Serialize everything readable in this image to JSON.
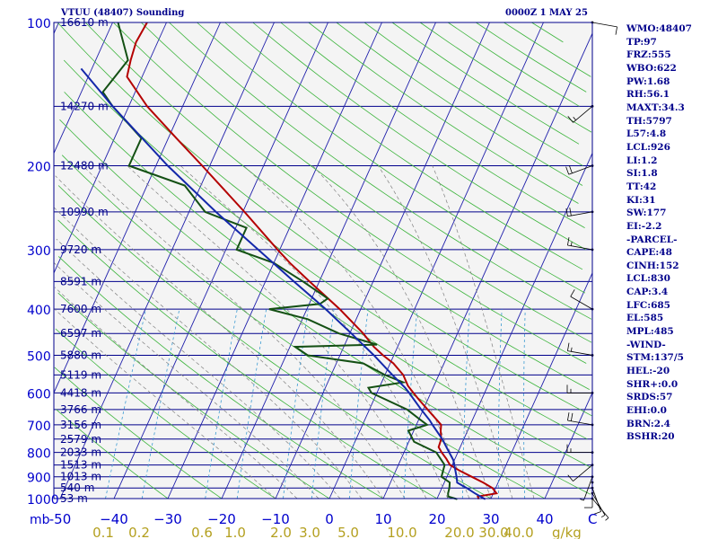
{
  "header": {
    "station": "VTUU (48407) Sounding",
    "time": "0000Z  1 MAY 25"
  },
  "colors": {
    "frame": "#00008b",
    "isobar": "#00008b",
    "isotherm": "#1e1eaa",
    "dry_adiabat": "#3cb43c",
    "moist_adiabat": "#808080",
    "mixing_ratio": "#3c9bd2",
    "temperature": "#b40000",
    "dewpoint": "#145014",
    "parcel": "#1428aa",
    "axis_label": "#0000cd",
    "mixing_label": "#b4a020",
    "plot_bg": "#f4f4f4",
    "wind": "#000000"
  },
  "indices": [
    "WMO:48407",
    "TP:97",
    "FRZ:555",
    "WBO:622",
    "PW:1.68",
    "RH:56.1",
    "MAXT:34.3",
    "TH:5797",
    "L57:4.8",
    "LCL:926",
    "LI:1.2",
    "SI:1.8",
    "TT:42",
    "KI:31",
    "SW:177",
    "EI:-2.2",
    "-PARCEL-",
    "CAPE:48",
    "CINH:152",
    "LCL:830",
    "CAP:3.4",
    "LFC:685",
    "EL:585",
    "MPL:485",
    "-WIND-",
    "STM:137/5",
    "HEL:-20",
    "SHR+:0.0",
    "SRDS:57",
    "EHI:0.0",
    "BRN:2.4",
    "BSHR:20"
  ],
  "chart_data": {
    "type": "line",
    "title": "VTUU (48407) Sounding",
    "subtitle": "0000Z  1 MAY 25",
    "x_unit_label": "mb",
    "mixing_unit": "g/kg",
    "xlim": [
      -50,
      50
    ],
    "ylim": [
      1000,
      100
    ],
    "y_scale": "log",
    "temperature_ticks": [
      -50,
      -40,
      -30,
      -20,
      -10,
      0,
      10,
      20,
      30,
      40
    ],
    "temperature_tick_labels": [
      "-50",
      "−40",
      "−30",
      "−20",
      "−10",
      "0",
      "10",
      "20",
      "30",
      "40"
    ],
    "c_label": "C",
    "pressure_ticks": [
      100,
      200,
      300,
      400,
      500,
      600,
      700,
      800,
      900,
      1000
    ],
    "pressure_tick_labels": [
      "100",
      "200",
      "300",
      "400",
      "500",
      "600",
      "700",
      "800",
      "900",
      "1000"
    ],
    "height_levels": [
      {
        "p": 100,
        "label": "16610 m"
      },
      {
        "p": 150,
        "label": "14270 m"
      },
      {
        "p": 200,
        "label": "12480 m"
      },
      {
        "p": 250,
        "label": "10990 m"
      },
      {
        "p": 300,
        "label": "9720 m"
      },
      {
        "p": 350,
        "label": "8591 m"
      },
      {
        "p": 400,
        "label": "7600 m"
      },
      {
        "p": 450,
        "label": "6597 m"
      },
      {
        "p": 500,
        "label": "5880 m"
      },
      {
        "p": 550,
        "label": "5119 m"
      },
      {
        "p": 600,
        "label": "4418 m"
      },
      {
        "p": 650,
        "label": "3766 m"
      },
      {
        "p": 700,
        "label": "3156 m"
      },
      {
        "p": 750,
        "label": "2579 m"
      },
      {
        "p": 800,
        "label": "2033 m"
      },
      {
        "p": 850,
        "label": "1513 m"
      },
      {
        "p": 900,
        "label": "1013 m"
      },
      {
        "p": 950,
        "label": "540 m"
      },
      {
        "p": 1000,
        "label": "53 m"
      }
    ],
    "mixing_ratios": [
      {
        "w": 0.1,
        "label": "0.1"
      },
      {
        "w": 0.2,
        "label": "0.2"
      },
      {
        "w": 0.6,
        "label": "0.6"
      },
      {
        "w": 1.0,
        "label": "1.0"
      },
      {
        "w": 2.0,
        "label": "2.0"
      },
      {
        "w": 3.0,
        "label": "3.0"
      },
      {
        "w": 5.0,
        "label": "5.0"
      },
      {
        "w": 10.0,
        "label": "10.0"
      },
      {
        "w": 20.0,
        "label": "20.0"
      },
      {
        "w": 30.0,
        "label": "30.0"
      },
      {
        "w": 40.0,
        "label": "40.0"
      }
    ],
    "series": [
      {
        "key": "temperature",
        "points": [
          [
            1003,
            27.8
          ],
          [
            990,
            27.4
          ],
          [
            975,
            30.6
          ],
          [
            950,
            29.4
          ],
          [
            925,
            27.2
          ],
          [
            900,
            24.6
          ],
          [
            875,
            22.0
          ],
          [
            850,
            19.6
          ],
          [
            825,
            18.4
          ],
          [
            800,
            17.0
          ],
          [
            780,
            16.0
          ],
          [
            750,
            15.8
          ],
          [
            720,
            15.0
          ],
          [
            700,
            14.6
          ],
          [
            650,
            10.8
          ],
          [
            620,
            8.4
          ],
          [
            600,
            6.8
          ],
          [
            580,
            5.2
          ],
          [
            550,
            3.4
          ],
          [
            520,
            0.6
          ],
          [
            500,
            -2.0
          ],
          [
            480,
            -4.4
          ],
          [
            450,
            -7.5
          ],
          [
            400,
            -13.9
          ],
          [
            350,
            -21.8
          ],
          [
            320,
            -27.0
          ],
          [
            300,
            -30.4
          ],
          [
            250,
            -39.7
          ],
          [
            200,
            -51.4
          ],
          [
            175,
            -58.5
          ],
          [
            150,
            -66.6
          ],
          [
            130,
            -72.8
          ],
          [
            120,
            -73.5
          ],
          [
            110,
            -74.0
          ],
          [
            100,
            -73.6
          ]
        ]
      },
      {
        "key": "dewpoint",
        "points": [
          [
            1003,
            23.8
          ],
          [
            990,
            21.9
          ],
          [
            975,
            21.6
          ],
          [
            950,
            21.4
          ],
          [
            925,
            21.0
          ],
          [
            900,
            19.0
          ],
          [
            850,
            18.6
          ],
          [
            800,
            16.0
          ],
          [
            760,
            11.0
          ],
          [
            720,
            9.0
          ],
          [
            700,
            12.0
          ],
          [
            680,
            10.0
          ],
          [
            650,
            7.0
          ],
          [
            600,
            -1.0
          ],
          [
            585,
            -2.0
          ],
          [
            570,
            4.0
          ],
          [
            550,
            0.0
          ],
          [
            520,
            -5.0
          ],
          [
            500,
            -16.0
          ],
          [
            480,
            -19.0
          ],
          [
            475,
            -4.0
          ],
          [
            450,
            -12.0
          ],
          [
            420,
            -19.0
          ],
          [
            400,
            -27.0
          ],
          [
            390,
            -18.0
          ],
          [
            380,
            -17.0
          ],
          [
            350,
            -23.0
          ],
          [
            320,
            -30.0
          ],
          [
            300,
            -38.0
          ],
          [
            270,
            -38.0
          ],
          [
            250,
            -47.0
          ],
          [
            220,
            -53.0
          ],
          [
            200,
            -65.0
          ],
          [
            175,
            -65.0
          ],
          [
            150,
            -73.0
          ],
          [
            140,
            -76.0
          ],
          [
            120,
            -74.0
          ],
          [
            100,
            -79.0
          ]
        ]
      },
      {
        "key": "parcel",
        "points": [
          [
            1003,
            29.0
          ],
          [
            975,
            26.6
          ],
          [
            950,
            24.6
          ],
          [
            926,
            22.4
          ],
          [
            900,
            21.8
          ],
          [
            850,
            20.4
          ],
          [
            830,
            19.8
          ],
          [
            800,
            18.4
          ],
          [
            750,
            16.0
          ],
          [
            700,
            13.0
          ],
          [
            685,
            12.1
          ],
          [
            650,
            9.6
          ],
          [
            600,
            6.0
          ],
          [
            585,
            4.8
          ],
          [
            550,
            1.4
          ],
          [
            500,
            -3.7
          ],
          [
            450,
            -9.7
          ],
          [
            400,
            -16.5
          ],
          [
            350,
            -24.7
          ],
          [
            300,
            -34.0
          ],
          [
            250,
            -45.0
          ],
          [
            200,
            -57.8
          ],
          [
            150,
            -73.0
          ],
          [
            125,
            -82.0
          ]
        ]
      }
    ],
    "wind_barbs": [
      {
        "p": 1000,
        "dir": 140,
        "spd": 5
      },
      {
        "p": 975,
        "dir": 150,
        "spd": 5
      },
      {
        "p": 950,
        "dir": 160,
        "spd": 10
      },
      {
        "p": 925,
        "dir": 180,
        "spd": 10
      },
      {
        "p": 900,
        "dir": 200,
        "spd": 5
      },
      {
        "p": 850,
        "dir": 230,
        "spd": 10
      },
      {
        "p": 800,
        "dir": 270,
        "spd": 15
      },
      {
        "p": 700,
        "dir": 280,
        "spd": 20
      },
      {
        "p": 600,
        "dir": 270,
        "spd": 15
      },
      {
        "p": 500,
        "dir": 280,
        "spd": 15
      },
      {
        "p": 400,
        "dir": 300,
        "spd": 10
      },
      {
        "p": 300,
        "dir": 280,
        "spd": 15
      },
      {
        "p": 250,
        "dir": 260,
        "spd": 20
      },
      {
        "p": 200,
        "dir": 250,
        "spd": 20
      },
      {
        "p": 150,
        "dir": 230,
        "spd": 15
      },
      {
        "p": 100,
        "dir": 100,
        "spd": 10
      }
    ]
  }
}
